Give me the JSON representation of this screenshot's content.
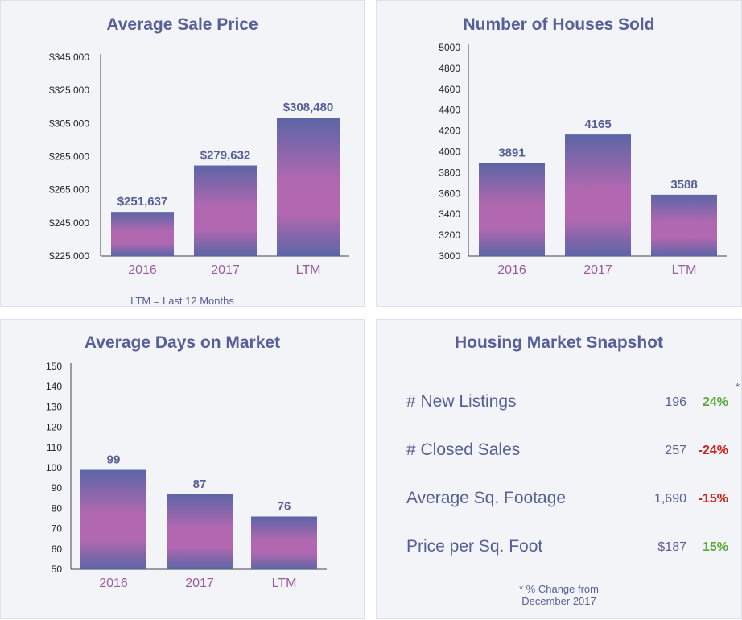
{
  "colors": {
    "title": "#565f97",
    "bar_edge": "#5c65a6",
    "bar_center": "#b168b0",
    "category": "#9a5aa0",
    "positive": "#5aa83a",
    "negative": "#cc1f1f"
  },
  "chart_data": [
    {
      "type": "bar",
      "title": "Average Sale Price",
      "categories": [
        "2016",
        "2017",
        "LTM"
      ],
      "values": [
        251637,
        279632,
        308480
      ],
      "value_labels": [
        "$251,637",
        "$279,632",
        "$308,480"
      ],
      "ylim": [
        225000,
        345000
      ],
      "yticks": [
        225000,
        245000,
        265000,
        285000,
        305000,
        325000,
        345000
      ],
      "ytick_labels": [
        "$225,000",
        "$245,000",
        "$265,000",
        "$285,000",
        "$305,000",
        "$325,000",
        "$345,000"
      ],
      "footnote": "LTM = Last 12 Months",
      "grid": false
    },
    {
      "type": "bar",
      "title": "Number of Houses Sold",
      "categories": [
        "2016",
        "2017",
        "LTM"
      ],
      "values": [
        3891,
        4165,
        3588
      ],
      "value_labels": [
        "3891",
        "4165",
        "3588"
      ],
      "ylim": [
        3000,
        5000
      ],
      "yticks": [
        3000,
        3200,
        3400,
        3600,
        3800,
        4000,
        4200,
        4400,
        4600,
        4800,
        5000
      ],
      "ytick_labels": [
        "3000",
        "3200",
        "3400",
        "3600",
        "3800",
        "4000",
        "4200",
        "4400",
        "4600",
        "4800",
        "5000"
      ],
      "grid": false
    },
    {
      "type": "bar",
      "title": "Average Days on Market",
      "categories": [
        "2016",
        "2017",
        "LTM"
      ],
      "values": [
        99,
        87,
        76
      ],
      "value_labels": [
        "99",
        "87",
        "76"
      ],
      "ylim": [
        50,
        150
      ],
      "yticks": [
        50,
        60,
        70,
        80,
        90,
        100,
        110,
        120,
        130,
        140,
        150
      ],
      "ytick_labels": [
        "50",
        "60",
        "70",
        "80",
        "90",
        "100",
        "110",
        "120",
        "130",
        "140",
        "150"
      ],
      "grid": false
    }
  ],
  "snapshot": {
    "title": "Housing Market Snapshot",
    "rows": [
      {
        "label": "# New Listings",
        "value": "196",
        "change": "24%",
        "trend": "positive"
      },
      {
        "label": "# Closed Sales",
        "value": "257",
        "change": "-24%",
        "trend": "negative"
      },
      {
        "label": "Average Sq. Footage",
        "value": "1,690",
        "change": "-15%",
        "trend": "negative"
      },
      {
        "label": "Price per Sq. Foot",
        "value": "$187",
        "change": "15%",
        "trend": "positive"
      }
    ],
    "asterisk": "*",
    "footnote_line1": "* % Change from",
    "footnote_line2": "December 2017"
  }
}
